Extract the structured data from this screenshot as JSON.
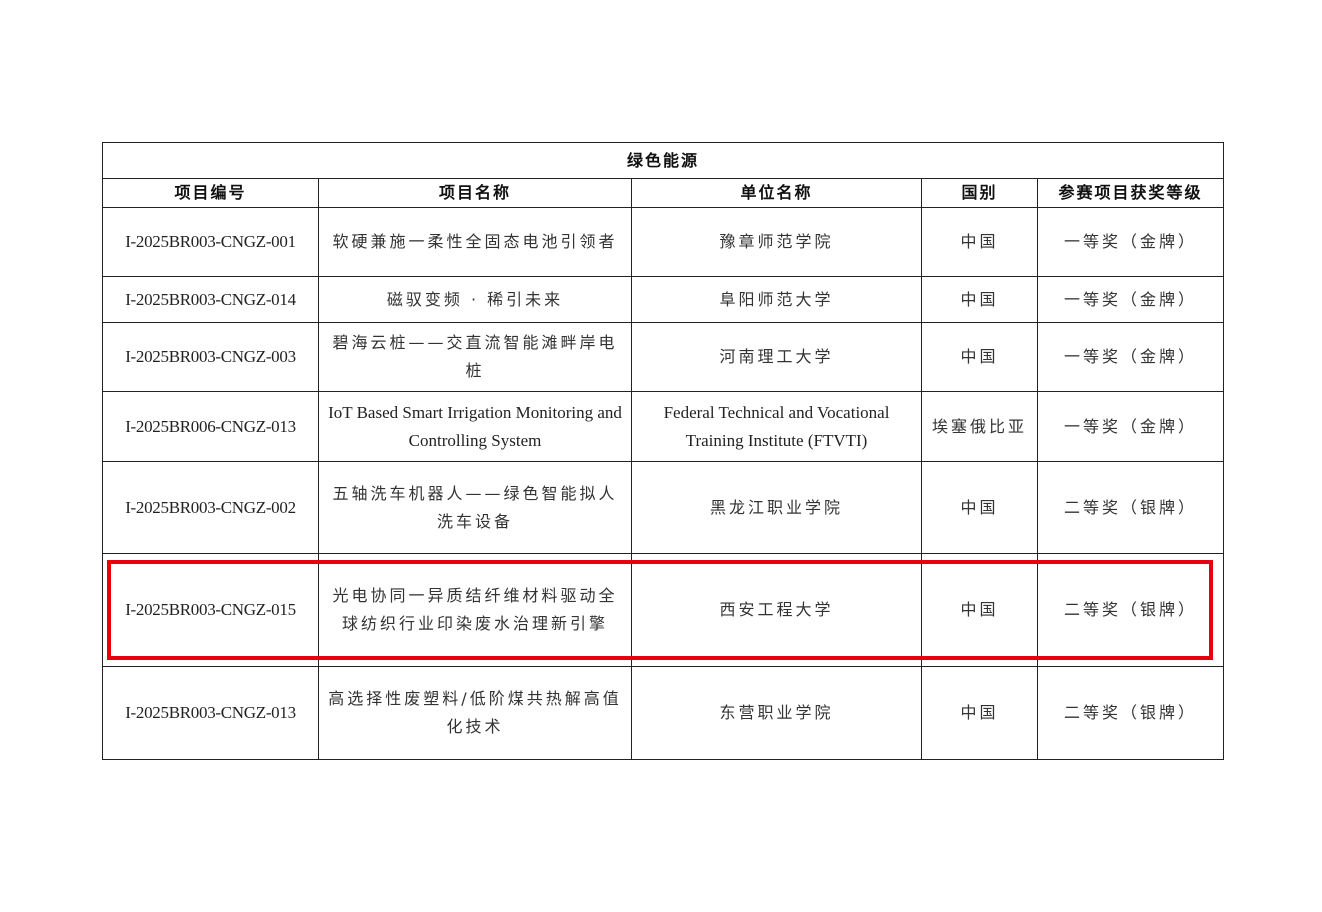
{
  "table": {
    "title": "绿色能源",
    "headers": [
      "项目编号",
      "项目名称",
      "单位名称",
      "国别",
      "参赛项目获奖等级"
    ],
    "rows": [
      {
        "id": "I-2025BR003-CNGZ-001",
        "name": "软硬兼施一柔性全固态电池引领者",
        "unit": "豫章师范学院",
        "country": "中国",
        "award": "一等奖（金牌）"
      },
      {
        "id": "I-2025BR003-CNGZ-014",
        "name": "磁驭变频 · 稀引未来",
        "unit": "阜阳师范大学",
        "country": "中国",
        "award": "一等奖（金牌）"
      },
      {
        "id": "I-2025BR003-CNGZ-003",
        "name": "碧海云桩——交直流智能滩畔岸电桩",
        "unit": "河南理工大学",
        "country": "中国",
        "award": "一等奖（金牌）"
      },
      {
        "id": "I-2025BR006-CNGZ-013",
        "name": "IoT Based Smart Irrigation Monitoring and Controlling System",
        "unit": "Federal Technical and Vocational Training Institute (FTVTI)",
        "country": "埃塞俄比亚",
        "award": "一等奖（金牌）"
      },
      {
        "id": "I-2025BR003-CNGZ-002",
        "name": "五轴洗车机器人——绿色智能拟人洗车设备",
        "unit": "黑龙江职业学院",
        "country": "中国",
        "award": "二等奖（银牌）"
      },
      {
        "id": "I-2025BR003-CNGZ-015",
        "name": "光电协同一异质结纤维材料驱动全球纺织行业印染废水治理新引擎",
        "unit": "西安工程大学",
        "country": "中国",
        "award": "二等奖（银牌）"
      },
      {
        "id": "I-2025BR003-CNGZ-013",
        "name": "高选择性废塑料/低阶煤共热解高值化技术",
        "unit": "东营职业学院",
        "country": "中国",
        "award": "二等奖（银牌）"
      }
    ]
  },
  "highlight_color": "#e8000b"
}
